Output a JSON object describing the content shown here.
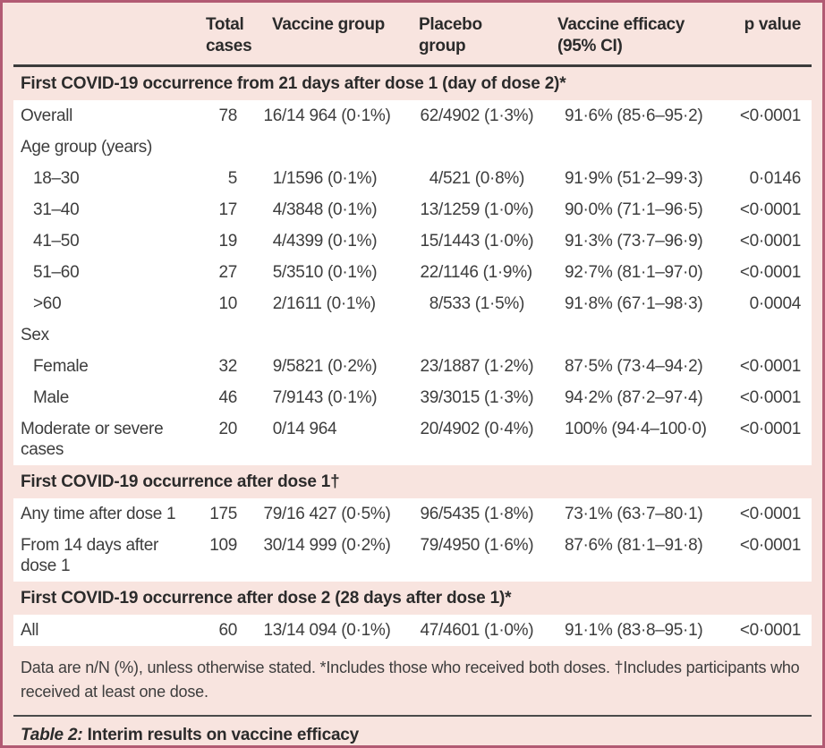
{
  "colors": {
    "frame_border": "#b25a73",
    "background": "#f8e4df",
    "row_background": "#ffffff",
    "rule_dark": "#3b3b3b",
    "text": "#3d3d3d",
    "text_strong": "#2b2b2b"
  },
  "table": {
    "columns": [
      {
        "key": "label",
        "label": ""
      },
      {
        "key": "total",
        "label": "Total\ncases"
      },
      {
        "key": "vaccine",
        "label": "Vaccine group"
      },
      {
        "key": "placebo",
        "label": "Placebo group"
      },
      {
        "key": "efficacy",
        "label": "Vaccine efficacy\n(95% CI)"
      },
      {
        "key": "p",
        "label": "p value"
      }
    ],
    "sections": [
      {
        "header": "First COVID-19 occurrence from 21 days after dose 1 (day of dose 2)*",
        "rows": [
          {
            "label": "Overall",
            "indent": 0,
            "total": "78",
            "vaccine": "16/14 964 (0·1%)",
            "placebo": "62/4902 (1·3%)",
            "efficacy": "91·6% (85·6–95·2)",
            "p": "<0·0001"
          },
          {
            "label": "Age group (years)",
            "indent": 0
          },
          {
            "label": "18–30",
            "indent": 1,
            "total": "5",
            "vaccine": "1/1596 (0·1%)",
            "placebo": "4/521 (0·8%)",
            "efficacy": "91·9% (51·2–99·3)",
            "p": "0·0146"
          },
          {
            "label": "31–40",
            "indent": 1,
            "total": "17",
            "vaccine": "4/3848 (0·1%)",
            "placebo": "13/1259 (1·0%)",
            "efficacy": "90·0% (71·1–96·5)",
            "p": "<0·0001"
          },
          {
            "label": "41–50",
            "indent": 1,
            "total": "19",
            "vaccine": "4/4399 (0·1%)",
            "placebo": "15/1443 (1·0%)",
            "efficacy": "91·3% (73·7–96·9)",
            "p": "<0·0001"
          },
          {
            "label": "51–60",
            "indent": 1,
            "total": "27",
            "vaccine": "5/3510 (0·1%)",
            "placebo": "22/1146 (1·9%)",
            "efficacy": "92·7% (81·1–97·0)",
            "p": "<0·0001"
          },
          {
            "label": ">60",
            "indent": 1,
            "total": "10",
            "vaccine": "2/1611 (0·1%)",
            "placebo": "8/533 (1·5%)",
            "efficacy": "91·8% (67·1–98·3)",
            "p": "0·0004"
          },
          {
            "label": "Sex",
            "indent": 0
          },
          {
            "label": "Female",
            "indent": 1,
            "total": "32",
            "vaccine": "9/5821 (0·2%)",
            "placebo": "23/1887 (1·2%)",
            "efficacy": "87·5% (73·4–94·2)",
            "p": "<0·0001"
          },
          {
            "label": "Male",
            "indent": 1,
            "total": "46",
            "vaccine": "7/9143 (0·1%)",
            "placebo": "39/3015 (1·3%)",
            "efficacy": "94·2% (87·2–97·4)",
            "p": "<0·0001"
          },
          {
            "label": "Moderate or severe cases",
            "indent": 0,
            "total": "20",
            "vaccine": "0/14 964",
            "placebo": "20/4902 (0·4%)",
            "efficacy": "100% (94·4–100·0)",
            "p": "<0·0001"
          }
        ]
      },
      {
        "header": "First COVID-19 occurrence after dose 1†",
        "rows": [
          {
            "label": "Any time after dose 1",
            "indent": 0,
            "total": "175",
            "vaccine": "79/16 427 (0·5%)",
            "placebo": "96/5435 (1·8%)",
            "efficacy": "73·1% (63·7–80·1)",
            "p": "<0·0001"
          },
          {
            "label": "From 14 days after dose 1",
            "indent": 0,
            "total": "109",
            "vaccine": "30/14 999 (0·2%)",
            "placebo": "79/4950 (1·6%)",
            "efficacy": "87·6% (81·1–91·8)",
            "p": "<0·0001"
          }
        ]
      },
      {
        "header": "First COVID-19 occurrence after dose 2 (28 days after dose 1)*",
        "rows": [
          {
            "label": "All",
            "indent": 0,
            "total": "60",
            "vaccine": "13/14 094 (0·1%)",
            "placebo": "47/4601 (1·0%)",
            "efficacy": "91·1% (83·8–95·1)",
            "p": "<0·0001"
          }
        ]
      }
    ],
    "footnote": "Data are n/N (%), unless otherwise stated. *Includes those who received both doses. †Includes participants who received at least one dose.",
    "caption_italic": "Table 2:",
    "caption_rest": " Interim results on vaccine efficacy"
  }
}
